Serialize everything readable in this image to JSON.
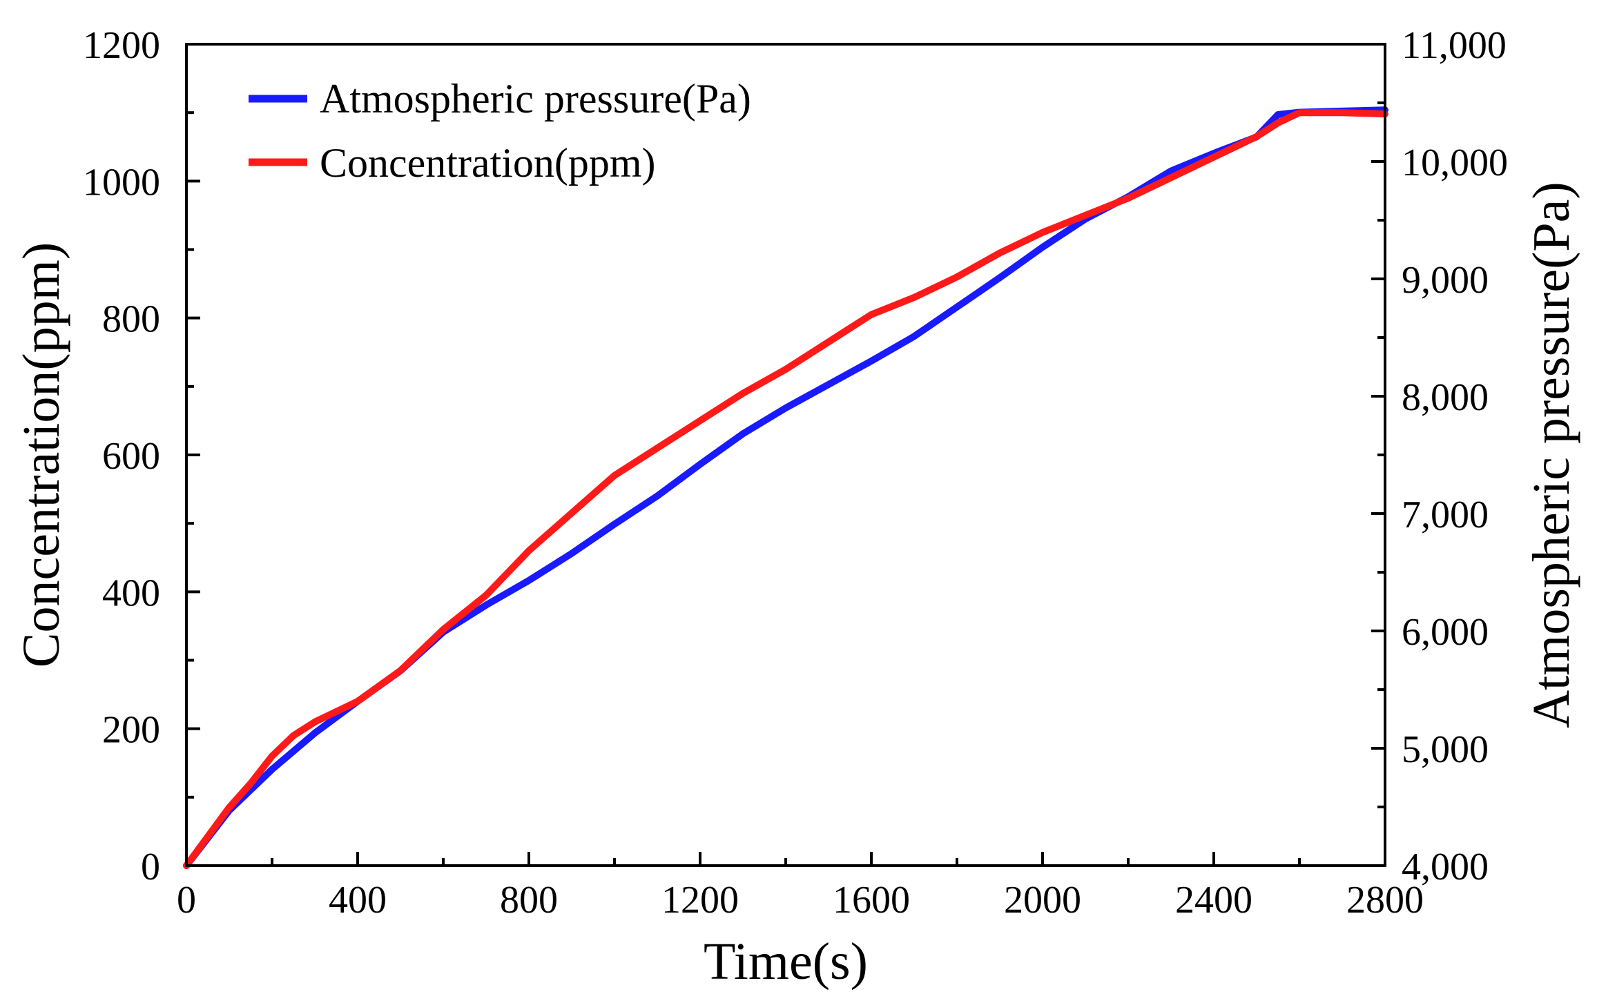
{
  "chart_data": {
    "type": "line",
    "xlabel": "Time(s)",
    "ylabel_left": "Concentration(ppm)",
    "ylabel_right": "Atmospheric pressure(Pa)",
    "xlim": [
      0,
      2800
    ],
    "ylim_left": [
      0,
      1200
    ],
    "ylim_right": [
      4000,
      11000
    ],
    "x_ticks": [
      "0",
      "400",
      "800",
      "1200",
      "1600",
      "2000",
      "2400",
      "2800"
    ],
    "y_left_ticks": [
      "0",
      "200",
      "400",
      "600",
      "800",
      "1000",
      "1200"
    ],
    "y_right_ticks": [
      "4,000",
      "5,000",
      "6,000",
      "7,000",
      "8,000",
      "9,000",
      "10,000",
      "11,000"
    ],
    "legend_position": "top-left",
    "series": [
      {
        "name": "Atmospheric pressure(Pa)",
        "axis": "right",
        "color": "#1a1aff",
        "x": [
          0,
          100,
          200,
          300,
          400,
          500,
          600,
          700,
          800,
          900,
          1000,
          1100,
          1200,
          1300,
          1400,
          1500,
          1600,
          1700,
          1800,
          1900,
          2000,
          2100,
          2200,
          2300,
          2400,
          2500,
          2550,
          2600,
          2700,
          2800
        ],
        "y": [
          4000,
          4470,
          4820,
          5130,
          5400,
          5660,
          5990,
          6220,
          6430,
          6660,
          6910,
          7150,
          7420,
          7680,
          7900,
          8100,
          8300,
          8510,
          8760,
          9010,
          9270,
          9510,
          9700,
          9920,
          10070,
          10210,
          10400,
          10420,
          10430,
          10440
        ]
      },
      {
        "name": "Concentration(ppm)",
        "axis": "left",
        "color": "#ff1a1a",
        "x": [
          0,
          100,
          150,
          200,
          250,
          300,
          350,
          400,
          500,
          600,
          700,
          800,
          900,
          1000,
          1100,
          1200,
          1300,
          1400,
          1500,
          1550,
          1600,
          1700,
          1800,
          1900,
          2000,
          2100,
          2200,
          2300,
          2400,
          2500,
          2550,
          2600,
          2700,
          2800
        ],
        "y": [
          0,
          85,
          120,
          160,
          190,
          210,
          225,
          240,
          285,
          345,
          395,
          460,
          515,
          570,
          610,
          650,
          690,
          725,
          765,
          785,
          805,
          830,
          860,
          895,
          925,
          950,
          975,
          1005,
          1035,
          1065,
          1085,
          1100,
          1100,
          1098
        ]
      }
    ]
  }
}
